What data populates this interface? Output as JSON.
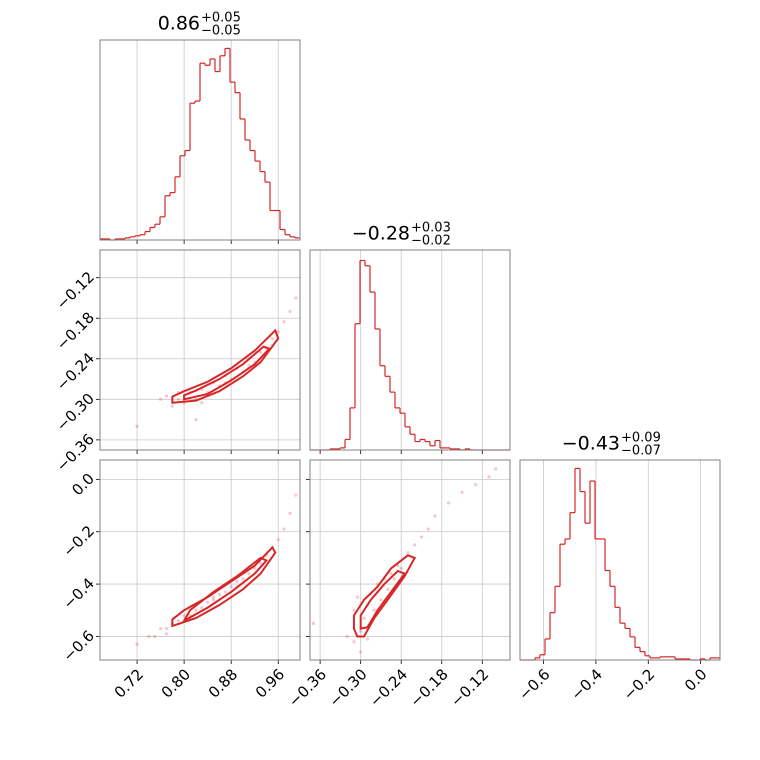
{
  "chart_data": [
    {
      "type": "histogram",
      "color": "#d62728",
      "title": {
        "value": "0.86",
        "plus": "+0.05",
        "minus": "−0.05"
      },
      "bins": [
        0.657,
        0.6655,
        0.674,
        0.6825,
        0.691,
        0.6995,
        0.708,
        0.7165,
        0.725,
        0.7335,
        0.742,
        0.7505,
        0.759,
        0.7675,
        0.776,
        0.7845,
        0.793,
        0.8015,
        0.81,
        0.8185,
        0.827,
        0.8355,
        0.844,
        0.8525,
        0.861,
        0.8695,
        0.878,
        0.8865,
        0.895,
        0.9035,
        0.912,
        0.9205,
        0.929,
        0.9375,
        0.946,
        0.9545,
        0.963,
        0.9715,
        0.98,
        0.9885,
        0.997
      ],
      "counts": [
        1,
        1,
        0,
        1,
        1,
        2,
        3,
        4,
        5,
        8,
        12,
        15,
        22,
        42,
        45,
        60,
        80,
        85,
        130,
        132,
        168,
        166,
        172,
        160,
        175,
        182,
        150,
        140,
        115,
        95,
        85,
        75,
        65,
        55,
        28,
        28,
        10,
        5,
        3,
        2
      ],
      "xlim": [
        0.657,
        0.997
      ],
      "ylim": [
        0,
        190
      ],
      "xticks": [
        0.72,
        0.8,
        0.88,
        0.96
      ],
      "xlabels": false,
      "grid": true
    },
    {
      "type": "scatter",
      "color": "#d62728",
      "x": [
        0.72,
        0.76,
        0.77,
        0.78,
        0.79,
        0.8,
        0.81,
        0.82,
        0.83,
        0.84,
        0.85,
        0.86,
        0.87,
        0.88,
        0.89,
        0.9,
        0.91,
        0.92,
        0.93,
        0.94,
        0.95,
        0.96,
        0.97,
        0.98,
        0.99,
        0.79,
        0.83,
        0.87,
        0.91,
        0.82,
        0.95
      ],
      "y": [
        -0.34,
        -0.3,
        -0.295,
        -0.31,
        -0.3,
        -0.305,
        -0.29,
        -0.3,
        -0.285,
        -0.29,
        -0.275,
        -0.28,
        -0.265,
        -0.27,
        -0.255,
        -0.26,
        -0.24,
        -0.245,
        -0.23,
        -0.225,
        -0.21,
        -0.2,
        -0.185,
        -0.17,
        -0.15,
        -0.29,
        -0.305,
        -0.275,
        -0.25,
        -0.33,
        -0.22
      ],
      "contours": [
        {
          "x": [
            0.78,
            0.82,
            0.86,
            0.9,
            0.93,
            0.96,
            0.955,
            0.92,
            0.88,
            0.84,
            0.8,
            0.78
          ],
          "y": [
            -0.305,
            -0.302,
            -0.288,
            -0.266,
            -0.245,
            -0.21,
            -0.198,
            -0.228,
            -0.254,
            -0.274,
            -0.288,
            -0.296
          ]
        },
        {
          "x": [
            0.8,
            0.84,
            0.88,
            0.92,
            0.945,
            0.935,
            0.9,
            0.86,
            0.82,
            0.8
          ],
          "y": [
            -0.3,
            -0.292,
            -0.272,
            -0.248,
            -0.225,
            -0.222,
            -0.248,
            -0.27,
            -0.287,
            -0.294
          ]
        }
      ],
      "xlim": [
        0.657,
        0.997
      ],
      "ylim": [
        -0.375,
        -0.079
      ],
      "xticks": [
        0.72,
        0.8,
        0.88,
        0.96
      ],
      "xlabels": false,
      "yticks": [
        {
          "value": -0.36,
          "label": "−0.36"
        },
        {
          "value": -0.3,
          "label": "−0.30"
        },
        {
          "value": -0.24,
          "label": "−0.24"
        },
        {
          "value": -0.18,
          "label": "−0.18"
        },
        {
          "value": -0.12,
          "label": "−0.12"
        }
      ],
      "ylabels": true,
      "grid": true
    },
    {
      "type": "histogram",
      "color": "#d62728",
      "title": {
        "value": "−0.28",
        "plus": "+0.03",
        "minus": "−0.02"
      },
      "bins": [
        -0.375,
        -0.3676,
        -0.3602,
        -0.3528,
        -0.3454,
        -0.338,
        -0.3306,
        -0.3232,
        -0.3158,
        -0.3084,
        -0.301,
        -0.2936,
        -0.2862,
        -0.2788,
        -0.2714,
        -0.264,
        -0.2566,
        -0.2492,
        -0.2418,
        -0.2344,
        -0.227,
        -0.2196,
        -0.2122,
        -0.2048,
        -0.1974,
        -0.19,
        -0.1826,
        -0.1752,
        -0.1678,
        -0.1604,
        -0.153,
        -0.1456,
        -0.1382,
        -0.1308,
        -0.1234,
        -0.116,
        -0.1086,
        -0.1012,
        -0.0938,
        -0.0864,
        -0.079
      ],
      "counts": [
        0,
        0,
        0,
        0,
        1,
        1,
        2,
        10,
        40,
        120,
        180,
        175,
        150,
        115,
        80,
        70,
        55,
        40,
        35,
        22,
        15,
        8,
        10,
        8,
        4,
        9,
        2,
        2,
        1,
        1,
        0,
        1,
        0,
        0,
        0,
        0,
        0,
        0,
        0,
        0
      ],
      "xlim": [
        -0.375,
        -0.079
      ],
      "ylim": [
        0,
        190
      ],
      "xticks": [
        -0.36,
        -0.3,
        -0.24,
        -0.18,
        -0.12
      ],
      "xlabels": false,
      "grid": true
    },
    {
      "type": "scatter",
      "color": "#d62728",
      "x": [
        0.72,
        0.74,
        0.75,
        0.76,
        0.77,
        0.78,
        0.79,
        0.8,
        0.81,
        0.82,
        0.83,
        0.84,
        0.85,
        0.86,
        0.87,
        0.88,
        0.89,
        0.9,
        0.91,
        0.92,
        0.93,
        0.94,
        0.95,
        0.96,
        0.97,
        0.98,
        0.99,
        0.77,
        0.81,
        0.85,
        0.89
      ],
      "y": [
        -0.63,
        -0.6,
        -0.6,
        -0.57,
        -0.57,
        -0.55,
        -0.54,
        -0.52,
        -0.52,
        -0.5,
        -0.49,
        -0.47,
        -0.46,
        -0.44,
        -0.43,
        -0.41,
        -0.39,
        -0.38,
        -0.36,
        -0.34,
        -0.32,
        -0.29,
        -0.26,
        -0.23,
        -0.19,
        -0.13,
        -0.06,
        -0.59,
        -0.53,
        -0.45,
        -0.41
      ],
      "contours": [
        {
          "x": [
            0.78,
            0.82,
            0.86,
            0.9,
            0.93,
            0.955,
            0.95,
            0.92,
            0.88,
            0.84,
            0.8,
            0.78
          ],
          "y": [
            -0.56,
            -0.53,
            -0.48,
            -0.42,
            -0.36,
            -0.28,
            -0.26,
            -0.33,
            -0.39,
            -0.45,
            -0.5,
            -0.535
          ]
        },
        {
          "x": [
            0.8,
            0.84,
            0.88,
            0.92,
            0.94,
            0.93,
            0.89,
            0.85,
            0.81
          ],
          "y": [
            -0.54,
            -0.49,
            -0.43,
            -0.36,
            -0.31,
            -0.3,
            -0.37,
            -0.43,
            -0.5
          ]
        }
      ],
      "xlim": [
        0.657,
        0.997
      ],
      "ylim": [
        -0.69,
        0.074
      ],
      "xticks": [
        0.72,
        {
          "value": 0.8,
          "label": "0.80"
        },
        0.88,
        0.96
      ],
      "xlabels": true,
      "yticks": [
        {
          "value": -0.6,
          "label": "−0.6"
        },
        {
          "value": -0.4,
          "label": "−0.4"
        },
        {
          "value": -0.2,
          "label": "−0.2"
        },
        {
          "value": 0.0,
          "label": "0.0"
        }
      ],
      "ylabels": true,
      "grid": true
    },
    {
      "type": "scatter",
      "color": "#d62728",
      "x": [
        -0.37,
        -0.32,
        -0.31,
        -0.31,
        -0.305,
        -0.3,
        -0.3,
        -0.295,
        -0.29,
        -0.29,
        -0.285,
        -0.28,
        -0.275,
        -0.27,
        -0.265,
        -0.26,
        -0.255,
        -0.25,
        -0.245,
        -0.24,
        -0.23,
        -0.22,
        -0.21,
        -0.2,
        -0.19,
        -0.17,
        -0.15,
        -0.13,
        -0.11,
        -0.1,
        -0.29
      ],
      "y": [
        -0.55,
        -0.6,
        -0.5,
        -0.62,
        -0.45,
        -0.58,
        -0.66,
        -0.53,
        -0.48,
        -0.61,
        -0.44,
        -0.5,
        -0.4,
        -0.46,
        -0.38,
        -0.42,
        -0.36,
        -0.38,
        -0.33,
        -0.34,
        -0.28,
        -0.25,
        -0.22,
        -0.19,
        -0.14,
        -0.09,
        -0.05,
        -0.02,
        0.01,
        0.04,
        -0.57
      ],
      "contours": [
        {
          "x": [
            -0.305,
            -0.295,
            -0.28,
            -0.26,
            -0.235,
            -0.22,
            -0.23,
            -0.255,
            -0.275,
            -0.295,
            -0.31,
            -0.31
          ],
          "y": [
            -0.6,
            -0.6,
            -0.53,
            -0.46,
            -0.37,
            -0.3,
            -0.29,
            -0.34,
            -0.41,
            -0.46,
            -0.52,
            -0.57
          ]
        },
        {
          "x": [
            -0.3,
            -0.29,
            -0.275,
            -0.255,
            -0.235,
            -0.245,
            -0.265,
            -0.285,
            -0.3
          ],
          "y": [
            -0.57,
            -0.565,
            -0.5,
            -0.43,
            -0.36,
            -0.35,
            -0.4,
            -0.46,
            -0.52
          ]
        }
      ],
      "xlim": [
        -0.375,
        -0.079
      ],
      "ylim": [
        -0.69,
        0.074
      ],
      "xticks": [
        {
          "value": -0.36,
          "label": "−0.36"
        },
        {
          "value": -0.3,
          "label": "−0.30"
        },
        {
          "value": -0.24,
          "label": "−0.24"
        },
        {
          "value": -0.18,
          "label": "−0.18"
        },
        {
          "value": -0.12,
          "label": "−0.12"
        }
      ],
      "xlabels": true,
      "yticks": [
        -0.6,
        -0.4,
        -0.2,
        0.0
      ],
      "ylabels": false,
      "grid": true
    },
    {
      "type": "histogram",
      "color": "#d62728",
      "title": {
        "value": "−0.43",
        "plus": "+0.09",
        "minus": "−0.07"
      },
      "bins": [
        -0.69,
        -0.6709,
        -0.6518,
        -0.6327,
        -0.6136,
        -0.5945,
        -0.5754,
        -0.5563,
        -0.5372,
        -0.5181,
        -0.499,
        -0.4799,
        -0.4608,
        -0.4417,
        -0.4226,
        -0.4035,
        -0.3844,
        -0.3653,
        -0.3462,
        -0.3271,
        -0.308,
        -0.2889,
        -0.2698,
        -0.2507,
        -0.2316,
        -0.2125,
        -0.1934,
        -0.1743,
        -0.1552,
        -0.1361,
        -0.117,
        -0.0979,
        -0.0788,
        -0.0597,
        -0.0406,
        -0.0215,
        -0.0024,
        0.0167,
        0.0358,
        0.0549,
        0.074
      ],
      "counts": [
        0,
        0,
        0,
        2,
        5,
        20,
        45,
        70,
        110,
        115,
        140,
        182,
        160,
        130,
        170,
        115,
        115,
        85,
        70,
        50,
        35,
        30,
        22,
        12,
        8,
        4,
        2,
        2,
        3,
        3,
        3,
        1,
        1,
        1,
        0,
        0,
        1,
        0,
        2,
        2
      ],
      "xlim": [
        -0.69,
        0.074
      ],
      "ylim": [
        0,
        190
      ],
      "xticks": [
        {
          "value": -0.6,
          "label": "−0.6"
        },
        {
          "value": -0.4,
          "label": "−0.4"
        },
        {
          "value": -0.2,
          "label": "−0.2"
        },
        {
          "value": 0.0,
          "label": "0.0"
        }
      ],
      "xlabels": true,
      "grid": true
    }
  ]
}
